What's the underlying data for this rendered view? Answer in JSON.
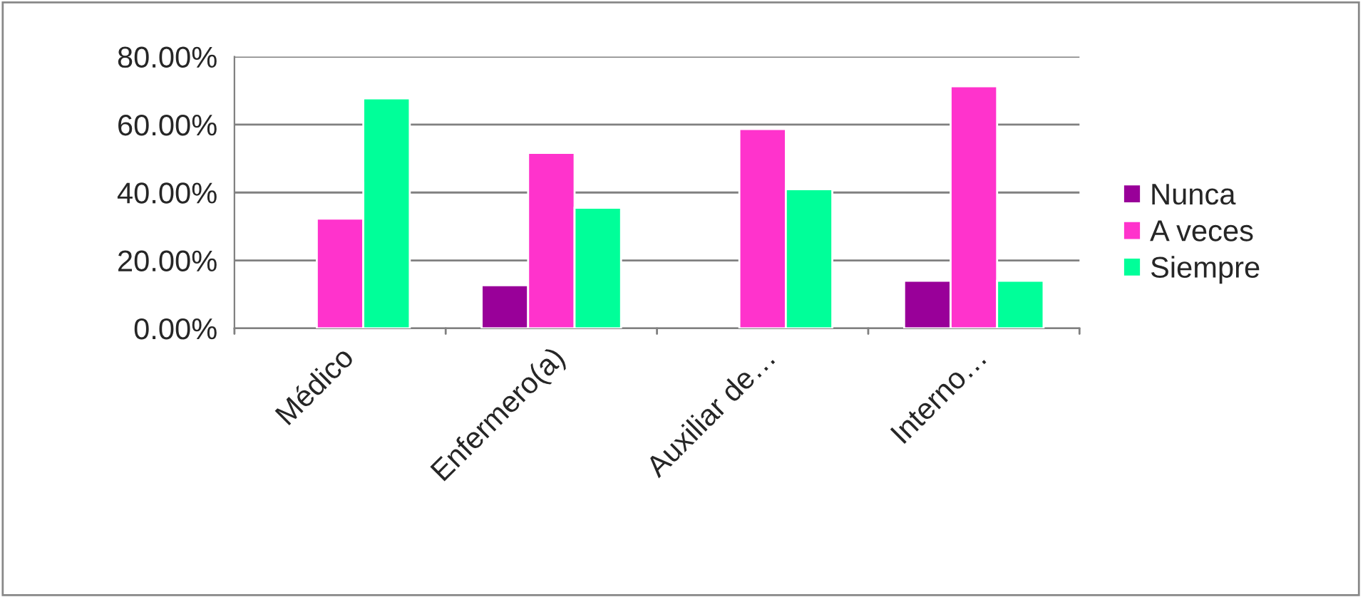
{
  "chart_data": {
    "type": "bar",
    "categories": [
      "Médico",
      "Enfermero(a)",
      "Auxiliar de…",
      "Interno…"
    ],
    "series": [
      {
        "name": "Nunca",
        "color": "#990099",
        "values": [
          null,
          12.7,
          null,
          14.0
        ]
      },
      {
        "name": "A veces",
        "color": "#ff33cc",
        "values": [
          32.3,
          51.7,
          58.7,
          71.3
        ]
      },
      {
        "name": "Siempre",
        "color": "#00ff99",
        "values": [
          67.7,
          35.5,
          41.0,
          14.0
        ]
      }
    ],
    "ylim": [
      0,
      80
    ],
    "yticks": [
      {
        "value": 0,
        "label": "0.00%"
      },
      {
        "value": 20,
        "label": "20.00%"
      },
      {
        "value": 40,
        "label": "40.00%"
      },
      {
        "value": 60,
        "label": "60.00%"
      },
      {
        "value": 80,
        "label": "80.00%"
      }
    ],
    "grid": "y",
    "legend": "right"
  }
}
